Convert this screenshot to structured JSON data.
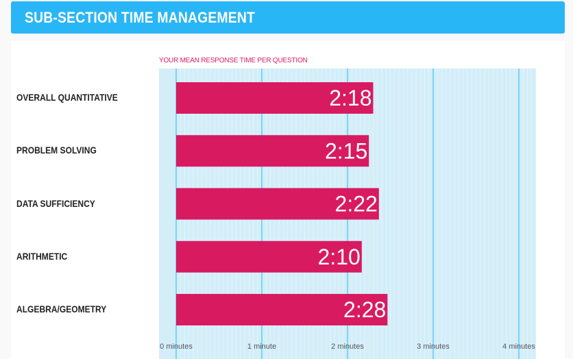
{
  "header": {
    "title": "SUB-SECTION TIME MANAGEMENT"
  },
  "chart_data": {
    "type": "bar",
    "orientation": "horizontal",
    "title": "YOUR MEAN RESPONSE TIME PER QUESTION",
    "categories": [
      "OVERALL QUANTITATIVE",
      "PROBLEM SOLVING",
      "DATA SUFFICIENCY",
      "ARITHMETIC",
      "ALGEBRA/GEOMETRY"
    ],
    "values_minutes": [
      2.3,
      2.25,
      2.3667,
      2.1667,
      2.4667
    ],
    "data_labels": [
      "2:18",
      "2:15",
      "2:22",
      "2:10",
      "2:28"
    ],
    "xlim": [
      0,
      4.2
    ],
    "x_ticks": [
      0,
      1,
      2,
      3,
      4
    ],
    "x_tick_labels": [
      "0 minutes",
      "1 minute",
      "2 minutes",
      "3 minutes",
      "4 minutes"
    ],
    "grid": true,
    "colors": {
      "bar": "#d81b60",
      "plot_bg": "#d3eef9",
      "grid": "#29b6f6",
      "header": "#29b6f6"
    }
  }
}
